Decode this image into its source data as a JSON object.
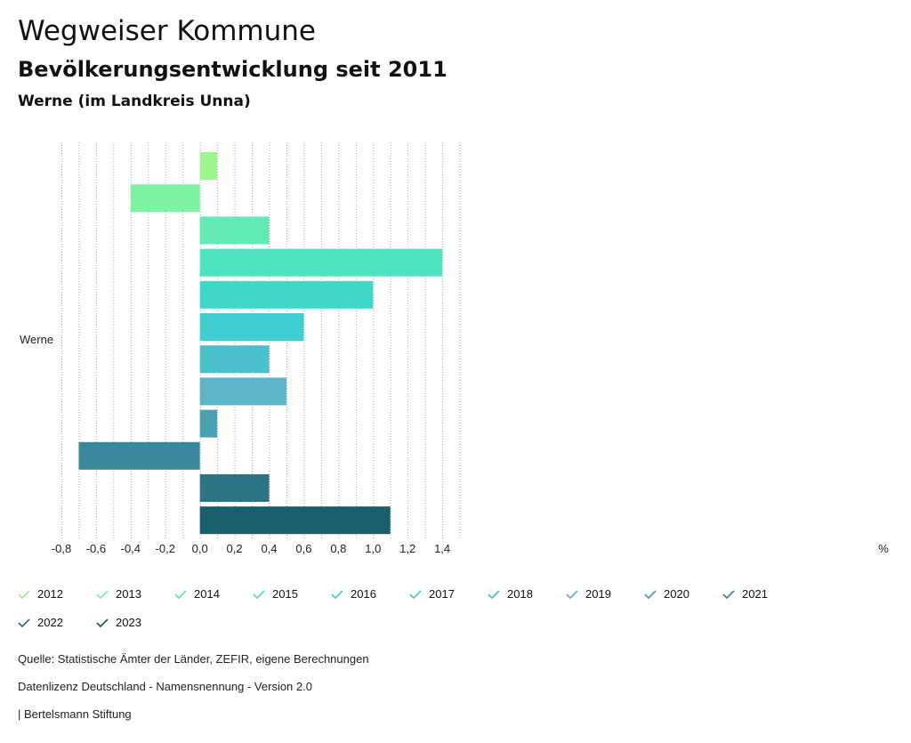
{
  "header": {
    "title": "Wegweiser Kommune",
    "subtitle": "Bevölkerungsentwicklung seit 2011",
    "region": "Werne (im Landkreis Unna)"
  },
  "chart_data": {
    "type": "bar",
    "orientation": "horizontal",
    "categories": [
      "Werne"
    ],
    "xlim": [
      -0.8,
      1.5
    ],
    "x_ticks": [
      -0.8,
      -0.6,
      -0.4,
      -0.2,
      0.0,
      0.2,
      0.4,
      0.6,
      0.8,
      1.0,
      1.2,
      1.4
    ],
    "x_tick_labels": [
      "-0,8",
      "-0,6",
      "-0,4",
      "-0,2",
      "0,0",
      "0,2",
      "0,4",
      "0,6",
      "0,8",
      "1,0",
      "1,2",
      "1,4"
    ],
    "x_unit": "%",
    "grid": true,
    "series": [
      {
        "name": "2012",
        "values": [
          0.1
        ],
        "color": "#9ef58d"
      },
      {
        "name": "2013",
        "values": [
          -0.4
        ],
        "color": "#7ef2a0"
      },
      {
        "name": "2014",
        "values": [
          0.4
        ],
        "color": "#62eab2"
      },
      {
        "name": "2015",
        "values": [
          1.4
        ],
        "color": "#4fe2c0"
      },
      {
        "name": "2016",
        "values": [
          1.0
        ],
        "color": "#40d6c9"
      },
      {
        "name": "2017",
        "values": [
          0.6
        ],
        "color": "#42cdd0"
      },
      {
        "name": "2018",
        "values": [
          0.4
        ],
        "color": "#4cbfcd"
      },
      {
        "name": "2019",
        "values": [
          0.5
        ],
        "color": "#5eb5c7"
      },
      {
        "name": "2020",
        "values": [
          0.1
        ],
        "color": "#4ba0b2"
      },
      {
        "name": "2021",
        "values": [
          -0.7
        ],
        "color": "#3a889c"
      },
      {
        "name": "2022",
        "values": [
          0.4
        ],
        "color": "#2a7486"
      },
      {
        "name": "2023",
        "values": [
          1.1
        ],
        "color": "#195f6e"
      }
    ]
  },
  "footer": {
    "source": "Quelle: Statistische Ämter der Länder, ZEFIR, eigene Berechnungen",
    "license": "Datenlizenz Deutschland - Namensnennung - Version 2.0",
    "brand": "| Bertelsmann Stiftung"
  }
}
